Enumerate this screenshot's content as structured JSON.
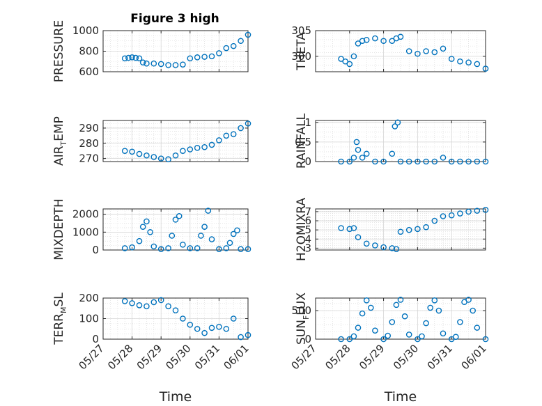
{
  "figure_title": "Figure 3 high",
  "colors": {
    "marker": "#0072BD",
    "axis": "#262626",
    "grid": "#d6d6d6"
  },
  "chart_data": [
    {
      "type": "scatter",
      "id": "pressure",
      "title": "Figure 3 high",
      "ylabel": {
        "base": "PRESSURE",
        "sub": "",
        "rest": ""
      },
      "ylim": [
        600,
        1000
      ],
      "yticks": [
        600,
        800,
        1000
      ],
      "ytick_labels": [
        "600",
        "800",
        "1000"
      ],
      "xlim": [
        "05/27",
        "06/01"
      ],
      "xticks": [],
      "xlabel": "",
      "x": [
        "05/27 18:00",
        "05/27 21:00",
        "05/28 00:00",
        "05/28 03:00",
        "05/28 06:00",
        "05/28 09:00",
        "05/28 12:00",
        "05/28 18:00",
        "05/29 00:00",
        "05/29 06:00",
        "05/29 12:00",
        "05/29 18:00",
        "05/30 00:00",
        "05/30 06:00",
        "05/30 12:00",
        "05/30 18:00",
        "05/31 00:00",
        "05/31 06:00",
        "05/31 12:00",
        "05/31 18:00",
        "06/01 00:00"
      ],
      "y": [
        730,
        735,
        740,
        735,
        730,
        690,
        680,
        680,
        675,
        665,
        665,
        670,
        730,
        740,
        745,
        750,
        780,
        830,
        850,
        900,
        960
      ]
    },
    {
      "type": "scatter",
      "id": "theta",
      "ylabel": {
        "base": "THETA",
        "sub": "",
        "rest": ""
      },
      "ylim": [
        297,
        305
      ],
      "yticks": [
        300,
        305
      ],
      "ytick_labels": [
        "300",
        "305"
      ],
      "xlim": [
        "05/27",
        "06/01"
      ],
      "xticks": [],
      "xlabel": "",
      "x": [
        "05/27 18:00",
        "05/27 21:00",
        "05/28 00:00",
        "05/28 03:00",
        "05/28 06:00",
        "05/28 09:00",
        "05/28 12:00",
        "05/28 18:00",
        "05/29 00:00",
        "05/29 06:00",
        "05/29 09:00",
        "05/29 12:00",
        "05/29 18:00",
        "05/30 00:00",
        "05/30 06:00",
        "05/30 12:00",
        "05/30 18:00",
        "05/31 00:00",
        "05/31 06:00",
        "05/31 12:00",
        "05/31 18:00",
        "06/01 00:00"
      ],
      "y": [
        299.5,
        299,
        298.5,
        300,
        302.5,
        303,
        303.2,
        303.5,
        303,
        303,
        303.5,
        303.8,
        301,
        300.5,
        301,
        300.8,
        301.5,
        299.5,
        299,
        298.8,
        298.5,
        297.6
      ]
    },
    {
      "type": "scatter",
      "id": "air_temp",
      "ylabel": {
        "base": "AIR",
        "sub": "T",
        "rest": "EMP"
      },
      "ylim": [
        268,
        295
      ],
      "yticks": [
        270,
        280,
        290
      ],
      "ytick_labels": [
        "270",
        "280",
        "290"
      ],
      "xlim": [
        "05/27",
        "06/01"
      ],
      "xticks": [],
      "xlabel": "",
      "x": [
        "05/27 18:00",
        "05/28 00:00",
        "05/28 06:00",
        "05/28 12:00",
        "05/28 18:00",
        "05/29 00:00",
        "05/29 06:00",
        "05/29 12:00",
        "05/29 18:00",
        "05/30 00:00",
        "05/30 06:00",
        "05/30 12:00",
        "05/30 18:00",
        "05/31 00:00",
        "05/31 06:00",
        "05/31 12:00",
        "05/31 18:00",
        "06/01 00:00"
      ],
      "y": [
        275,
        274.5,
        273,
        272,
        271,
        270,
        269.5,
        272,
        275,
        276,
        277,
        277.5,
        279,
        282,
        285,
        286,
        290,
        293
      ]
    },
    {
      "type": "scatter",
      "id": "rainfall",
      "ylabel": {
        "base": "RAINFALL",
        "sub": "",
        "rest": ""
      },
      "ylim": [
        0,
        1.05
      ],
      "yticks": [
        0,
        0.5,
        1
      ],
      "ytick_labels": [
        "0",
        "0.5",
        "1"
      ],
      "xlim": [
        "05/27",
        "06/01"
      ],
      "xticks": [],
      "xlabel": "",
      "x": [
        "05/27 18:00",
        "05/28 00:00",
        "05/28 03:00",
        "05/28 05:00",
        "05/28 06:00",
        "05/28 09:00",
        "05/28 12:00",
        "05/28 18:00",
        "05/29 00:00",
        "05/29 06:00",
        "05/29 08:00",
        "05/29 10:00",
        "05/29 12:00",
        "05/29 18:00",
        "05/30 00:00",
        "05/30 06:00",
        "05/30 12:00",
        "05/30 18:00",
        "05/31 00:00",
        "05/31 06:00",
        "05/31 12:00",
        "05/31 18:00",
        "06/01 00:00"
      ],
      "y": [
        0,
        0,
        0.1,
        0.5,
        0.3,
        0.1,
        0.2,
        0,
        0,
        0.2,
        0.9,
        1.0,
        0,
        0,
        0,
        0,
        0,
        0.1,
        0,
        0,
        0,
        0,
        0
      ]
    },
    {
      "type": "scatter",
      "id": "mixdepth",
      "ylabel": {
        "base": "MIXDEPTH",
        "sub": "",
        "rest": ""
      },
      "ylim": [
        0,
        2300
      ],
      "yticks": [
        0,
        1000,
        2000
      ],
      "ytick_labels": [
        "0",
        "1000",
        "2000"
      ],
      "xlim": [
        "05/27",
        "06/01"
      ],
      "xticks": [],
      "xlabel": "",
      "x": [
        "05/27 18:00",
        "05/28 00:00",
        "05/28 06:00",
        "05/28 09:00",
        "05/28 12:00",
        "05/28 15:00",
        "05/28 18:00",
        "05/29 00:00",
        "05/29 06:00",
        "05/29 09:00",
        "05/29 12:00",
        "05/29 15:00",
        "05/29 18:00",
        "05/30 00:00",
        "05/30 06:00",
        "05/30 09:00",
        "05/30 12:00",
        "05/30 15:00",
        "05/30 18:00",
        "05/31 00:00",
        "05/31 06:00",
        "05/31 09:00",
        "05/31 12:00",
        "05/31 15:00",
        "05/31 18:00",
        "06/01 00:00"
      ],
      "y": [
        100,
        150,
        500,
        1300,
        1600,
        1000,
        200,
        50,
        100,
        800,
        1700,
        1900,
        300,
        100,
        100,
        800,
        1300,
        2200,
        600,
        50,
        100,
        400,
        900,
        1100,
        50,
        50
      ]
    },
    {
      "type": "scatter",
      "id": "h2omixra",
      "ylabel": {
        "base": "H2OMIXRA",
        "sub": "",
        "rest": ""
      },
      "ylim": [
        2.8,
        7.3
      ],
      "yticks": [
        3,
        4,
        5,
        6,
        7
      ],
      "ytick_labels": [
        "3",
        "4",
        "5",
        "6",
        "7"
      ],
      "xlim": [
        "05/27",
        "06/01"
      ],
      "xticks": [],
      "xlabel": "",
      "x": [
        "05/27 18:00",
        "05/28 00:00",
        "05/28 03:00",
        "05/28 06:00",
        "05/28 12:00",
        "05/28 18:00",
        "05/29 00:00",
        "05/29 06:00",
        "05/29 09:00",
        "05/29 12:00",
        "05/29 18:00",
        "05/30 00:00",
        "05/30 06:00",
        "05/30 12:00",
        "05/30 18:00",
        "05/31 00:00",
        "05/31 06:00",
        "05/31 12:00",
        "05/31 18:00",
        "06/01 00:00"
      ],
      "y": [
        5.2,
        5.1,
        5.2,
        4.2,
        3.5,
        3.3,
        3.1,
        3.0,
        2.9,
        4.8,
        5.0,
        5.1,
        5.3,
        6.0,
        6.5,
        6.6,
        6.8,
        7.0,
        7.1,
        7.2
      ]
    },
    {
      "type": "scatter",
      "id": "terr_msl",
      "ylabel": {
        "base": "TERR",
        "sub": "M",
        "rest": "SL"
      },
      "ylim": [
        0,
        200
      ],
      "yticks": [
        0,
        100,
        200
      ],
      "ytick_labels": [
        "0",
        "100",
        "200"
      ],
      "xlim": [
        "05/27",
        "06/01"
      ],
      "xticks": [
        "05/27",
        "05/28",
        "05/29",
        "05/30",
        "05/31",
        "06/01"
      ],
      "xlabel": "Time",
      "x": [
        "05/27 18:00",
        "05/28 00:00",
        "05/28 06:00",
        "05/28 12:00",
        "05/28 18:00",
        "05/29 00:00",
        "05/29 06:00",
        "05/29 12:00",
        "05/29 18:00",
        "05/30 00:00",
        "05/30 06:00",
        "05/30 12:00",
        "05/30 18:00",
        "05/31 00:00",
        "05/31 06:00",
        "05/31 12:00",
        "05/31 18:00",
        "06/01 00:00"
      ],
      "y": [
        185,
        175,
        165,
        160,
        180,
        190,
        160,
        140,
        100,
        70,
        50,
        30,
        55,
        60,
        50,
        100,
        10,
        20
      ]
    },
    {
      "type": "scatter",
      "id": "sun_flux",
      "ylabel": {
        "base": "SUN",
        "sub": "F",
        "rest": "LUX"
      },
      "ylim": [
        0,
        720
      ],
      "yticks": [
        0,
        500
      ],
      "ytick_labels": [
        "0",
        "500"
      ],
      "xlim": [
        "05/27",
        "06/01"
      ],
      "xticks": [
        "05/27",
        "05/28",
        "05/29",
        "05/30",
        "05/31",
        "06/01"
      ],
      "xlabel": "Time",
      "x": [
        "05/27 18:00",
        "05/28 00:00",
        "05/28 03:00",
        "05/28 06:00",
        "05/28 09:00",
        "05/28 12:00",
        "05/28 15:00",
        "05/28 18:00",
        "05/29 00:00",
        "05/29 03:00",
        "05/29 06:00",
        "05/29 09:00",
        "05/29 12:00",
        "05/29 15:00",
        "05/29 18:00",
        "05/30 00:00",
        "05/30 03:00",
        "05/30 06:00",
        "05/30 09:00",
        "05/30 12:00",
        "05/30 15:00",
        "05/30 18:00",
        "05/31 00:00",
        "05/31 03:00",
        "05/31 06:00",
        "05/31 09:00",
        "05/31 12:00",
        "05/31 15:00",
        "05/31 18:00",
        "06/01 00:00"
      ],
      "y": [
        0,
        0,
        50,
        200,
        450,
        680,
        550,
        150,
        0,
        60,
        300,
        600,
        690,
        400,
        80,
        0,
        50,
        280,
        550,
        680,
        500,
        100,
        0,
        40,
        300,
        650,
        690,
        500,
        200,
        0
      ]
    }
  ]
}
